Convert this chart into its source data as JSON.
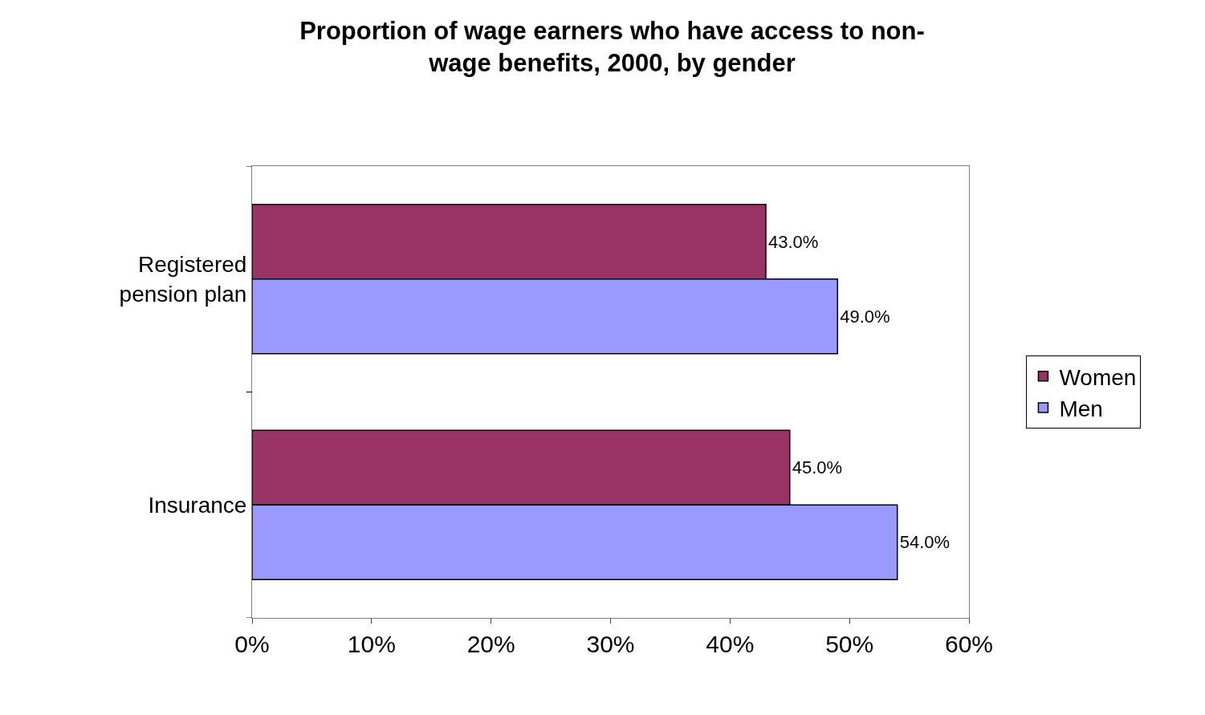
{
  "chart_data": {
    "type": "bar",
    "orientation": "horizontal",
    "title": "Proportion of wage earners who have access to non-wage benefits, 2000, by gender",
    "categories": [
      "Registered pension plan",
      "Insurance"
    ],
    "series": [
      {
        "name": "Women",
        "color": "#993366",
        "values": [
          43,
          45
        ],
        "value_labels": [
          "43.0%",
          "45.0%"
        ]
      },
      {
        "name": "Men",
        "color": "#9999ff",
        "values": [
          49,
          54
        ],
        "value_labels": [
          "49.0%",
          "54.0%"
        ]
      }
    ],
    "xlim": [
      0,
      60
    ],
    "xticks": [
      {
        "value": 0,
        "label": "0%"
      },
      {
        "value": 10,
        "label": "10%"
      },
      {
        "value": 20,
        "label": "20%"
      },
      {
        "value": 30,
        "label": "30%"
      },
      {
        "value": 40,
        "label": "40%"
      },
      {
        "value": 50,
        "label": "50%"
      },
      {
        "value": 60,
        "label": "60%"
      }
    ],
    "legend": "right"
  }
}
